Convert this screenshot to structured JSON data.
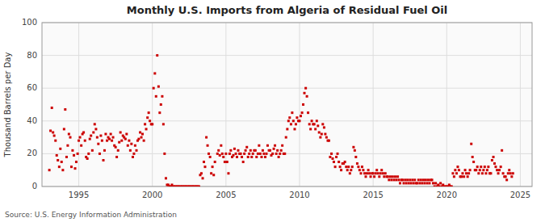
{
  "chart_data": {
    "type": "scatter",
    "title": "Monthly U.S. Imports from Algeria of Residual Fuel Oil",
    "ylabel": "Thousand Barrels per Day",
    "source": "Source: U.S. Energy Information Administration",
    "color": "#cc0000",
    "marker": "square",
    "grid": true,
    "xlim": [
      1992.5,
      2025.8
    ],
    "xticks": [
      1995,
      2000,
      2005,
      2010,
      2015,
      2020,
      2025
    ],
    "ylim": [
      0,
      100
    ],
    "yticks": [
      0,
      20,
      40,
      60,
      80,
      100
    ],
    "x": [
      1993.0,
      1993.08,
      1993.17,
      1993.25,
      1993.33,
      1993.42,
      1993.5,
      1993.58,
      1993.67,
      1993.75,
      1993.83,
      1993.92,
      1994.0,
      1994.08,
      1994.17,
      1994.25,
      1994.33,
      1994.42,
      1994.5,
      1994.58,
      1994.67,
      1994.75,
      1994.83,
      1994.92,
      1995.0,
      1995.08,
      1995.17,
      1995.25,
      1995.33,
      1995.42,
      1995.5,
      1995.58,
      1995.67,
      1995.75,
      1995.83,
      1995.92,
      1996.0,
      1996.08,
      1996.17,
      1996.25,
      1996.33,
      1996.42,
      1996.5,
      1996.58,
      1996.67,
      1996.75,
      1996.83,
      1996.92,
      1997.0,
      1997.08,
      1997.17,
      1997.25,
      1997.33,
      1997.42,
      1997.5,
      1997.58,
      1997.67,
      1997.75,
      1997.83,
      1997.92,
      1998.0,
      1998.08,
      1998.17,
      1998.25,
      1998.33,
      1998.42,
      1998.5,
      1998.58,
      1998.67,
      1998.75,
      1998.83,
      1998.92,
      1999.0,
      1999.08,
      1999.17,
      1999.25,
      1999.33,
      1999.42,
      1999.5,
      1999.58,
      1999.67,
      1999.75,
      1999.83,
      1999.92,
      2000.0,
      2000.08,
      2000.17,
      2000.25,
      2000.33,
      2000.42,
      2000.5,
      2000.58,
      2000.67,
      2000.75,
      2000.83,
      2000.92,
      2001.0,
      2001.08,
      2001.17,
      2001.25,
      2001.33,
      2001.42,
      2001.5,
      2001.58,
      2001.67,
      2001.75,
      2001.83,
      2001.92,
      2002.0,
      2002.08,
      2002.17,
      2002.25,
      2002.33,
      2002.42,
      2002.5,
      2002.58,
      2002.67,
      2002.75,
      2002.83,
      2002.92,
      2003.0,
      2003.08,
      2003.17,
      2003.25,
      2003.33,
      2003.42,
      2003.5,
      2003.58,
      2003.67,
      2003.75,
      2003.83,
      2003.92,
      2004.0,
      2004.08,
      2004.17,
      2004.25,
      2004.42,
      2004.5,
      2004.58,
      2004.67,
      2004.75,
      2004.83,
      2004.92,
      2005.0,
      2005.08,
      2005.17,
      2005.25,
      2005.33,
      2005.42,
      2005.5,
      2005.58,
      2005.67,
      2005.75,
      2005.83,
      2005.92,
      2006.0,
      2006.08,
      2006.17,
      2006.25,
      2006.33,
      2006.42,
      2006.5,
      2006.58,
      2006.67,
      2006.75,
      2006.83,
      2006.92,
      2007.0,
      2007.08,
      2007.17,
      2007.25,
      2007.33,
      2007.42,
      2007.5,
      2007.58,
      2007.67,
      2007.75,
      2007.83,
      2007.92,
      2008.0,
      2008.08,
      2008.17,
      2008.25,
      2008.33,
      2008.42,
      2008.5,
      2008.58,
      2008.67,
      2008.75,
      2008.83,
      2008.92,
      2009.0,
      2009.08,
      2009.17,
      2009.25,
      2009.33,
      2009.42,
      2009.5,
      2009.58,
      2009.67,
      2009.75,
      2009.83,
      2009.92,
      2010.0,
      2010.08,
      2010.17,
      2010.25,
      2010.33,
      2010.42,
      2010.5,
      2010.58,
      2010.67,
      2010.75,
      2010.83,
      2010.92,
      2011.0,
      2011.08,
      2011.17,
      2011.25,
      2011.33,
      2011.42,
      2011.5,
      2011.58,
      2011.67,
      2011.75,
      2011.83,
      2011.92,
      2012.0,
      2012.08,
      2012.17,
      2012.25,
      2012.33,
      2012.42,
      2012.5,
      2012.58,
      2012.67,
      2012.75,
      2012.83,
      2012.92,
      2013.0,
      2013.08,
      2013.17,
      2013.25,
      2013.33,
      2013.42,
      2013.5,
      2013.58,
      2013.67,
      2013.75,
      2013.83,
      2013.92,
      2014.0,
      2014.08,
      2014.17,
      2014.25,
      2014.33,
      2014.42,
      2014.5,
      2014.58,
      2014.67,
      2014.75,
      2014.83,
      2014.92,
      2015.0,
      2015.08,
      2015.17,
      2015.25,
      2015.33,
      2015.42,
      2015.5,
      2015.58,
      2015.67,
      2015.75,
      2015.83,
      2015.92,
      2016.0,
      2016.08,
      2016.17,
      2016.25,
      2016.33,
      2016.42,
      2016.5,
      2016.58,
      2016.67,
      2016.75,
      2016.83,
      2016.92,
      2017.0,
      2017.08,
      2017.17,
      2017.25,
      2017.33,
      2017.42,
      2017.5,
      2017.58,
      2017.67,
      2017.75,
      2017.83,
      2017.92,
      2018.0,
      2018.08,
      2018.17,
      2018.25,
      2018.33,
      2018.42,
      2018.5,
      2018.58,
      2018.67,
      2018.75,
      2018.83,
      2018.92,
      2019.0,
      2019.08,
      2019.17,
      2019.25,
      2019.33,
      2019.42,
      2019.5,
      2019.58,
      2019.67,
      2019.75,
      2019.83,
      2019.92,
      2020.0,
      2020.08,
      2020.17,
      2020.25,
      2020.33,
      2020.42,
      2020.5,
      2020.58,
      2020.67,
      2020.75,
      2020.83,
      2020.92,
      2021.0,
      2021.08,
      2021.17,
      2021.25,
      2021.33,
      2021.42,
      2021.5,
      2021.58,
      2021.67,
      2021.75,
      2021.83,
      2021.92,
      2022.0,
      2022.08,
      2022.17,
      2022.25,
      2022.33,
      2022.42,
      2022.5,
      2022.58,
      2022.67,
      2022.75,
      2022.83,
      2022.92,
      2023.0,
      2023.08,
      2023.17,
      2023.25,
      2023.33,
      2023.42,
      2023.5,
      2023.58,
      2023.67,
      2023.75,
      2023.83,
      2023.92,
      2024.0,
      2024.08,
      2024.17,
      2024.25,
      2024.33,
      2024.42,
      2024.5
    ],
    "values": [
      10,
      34,
      48,
      33,
      31,
      28,
      19,
      16,
      12,
      23,
      15,
      10,
      35,
      47,
      18,
      25,
      32,
      30,
      12,
      22,
      19,
      11,
      15,
      20,
      28,
      30,
      25,
      32,
      33,
      28,
      18,
      17,
      20,
      29,
      31,
      22,
      33,
      38,
      35,
      30,
      26,
      20,
      31,
      28,
      16,
      22,
      32,
      28,
      30,
      29,
      32,
      28,
      30,
      25,
      24,
      18,
      22,
      27,
      33,
      28,
      31,
      30,
      29,
      32,
      25,
      28,
      22,
      26,
      18,
      20,
      25,
      22,
      28,
      29,
      33,
      30,
      32,
      28,
      38,
      35,
      42,
      45,
      40,
      38,
      38,
      60,
      69,
      55,
      80,
      61,
      45,
      50,
      55,
      38,
      20,
      5,
      1,
      1,
      0,
      0,
      1,
      0,
      0,
      0,
      0,
      0,
      0,
      0,
      0,
      0,
      0,
      0,
      0,
      0,
      0,
      0,
      0,
      0,
      0,
      0,
      0,
      0,
      0,
      7,
      8,
      5,
      15,
      12,
      30,
      25,
      20,
      18,
      8,
      12,
      7,
      15,
      20,
      22,
      19,
      25,
      20,
      18,
      15,
      20,
      15,
      8,
      20,
      22,
      18,
      19,
      23,
      20,
      18,
      22,
      20,
      20,
      18,
      15,
      20,
      22,
      24,
      18,
      20,
      22,
      18,
      20,
      22,
      22,
      18,
      20,
      25,
      20,
      18,
      22,
      20,
      18,
      20,
      25,
      22,
      22,
      19,
      20,
      23,
      25,
      20,
      22,
      18,
      20,
      22,
      25,
      20,
      20,
      30,
      35,
      40,
      42,
      38,
      45,
      40,
      35,
      38,
      42,
      40,
      40,
      43,
      45,
      50,
      57,
      60,
      55,
      45,
      38,
      35,
      40,
      38,
      38,
      35,
      40,
      37,
      33,
      30,
      32,
      38,
      36,
      32,
      30,
      28,
      28,
      18,
      20,
      17,
      15,
      12,
      18,
      20,
      15,
      12,
      10,
      14,
      14,
      15,
      12,
      10,
      12,
      8,
      10,
      12,
      24,
      22,
      18,
      14,
      12,
      10,
      8,
      12,
      10,
      8,
      6,
      8,
      10,
      8,
      6,
      8,
      8,
      6,
      8,
      10,
      8,
      6,
      8,
      10,
      8,
      6,
      8,
      6,
      6,
      4,
      6,
      4,
      6,
      4,
      6,
      4,
      6,
      4,
      2,
      4,
      4,
      2,
      4,
      2,
      4,
      2,
      4,
      2,
      4,
      2,
      4,
      2,
      2,
      4,
      2,
      4,
      2,
      4,
      2,
      4,
      2,
      4,
      2,
      4,
      4,
      2,
      0,
      2,
      0,
      1,
      0,
      2,
      0,
      1,
      0,
      0,
      0,
      0,
      1,
      0,
      0,
      8,
      6,
      10,
      8,
      12,
      10,
      6,
      6,
      8,
      6,
      10,
      8,
      6,
      8,
      10,
      26,
      18,
      15,
      10,
      10,
      12,
      8,
      10,
      12,
      8,
      10,
      12,
      8,
      10,
      12,
      8,
      8,
      16,
      18,
      14,
      12,
      10,
      8,
      10,
      12,
      22,
      8,
      6,
      6,
      4,
      8,
      10,
      8,
      6,
      8
    ]
  }
}
